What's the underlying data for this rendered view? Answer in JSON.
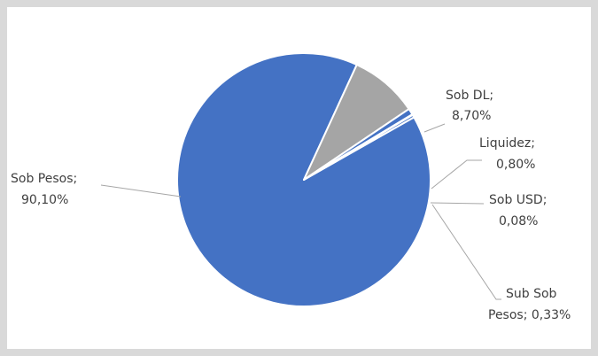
{
  "chart_data": {
    "type": "pie",
    "title": "",
    "slices": [
      {
        "label": "Sob Pesos",
        "value": 90.1,
        "display": "90,10%",
        "color": "#4472c4"
      },
      {
        "label": "Sob DL",
        "value": 8.7,
        "display": "8,70%",
        "color": "#a5a5a5"
      },
      {
        "label": "Liquidez",
        "value": 0.8,
        "display": "0,80%",
        "color": "#4472c4"
      },
      {
        "label": "Sob USD",
        "value": 0.08,
        "display": "0,08%",
        "color": "#4472c4"
      },
      {
        "label": "Sub Sob Pesos",
        "value": 0.33,
        "display": "0,33%",
        "color": "#4472c4"
      }
    ],
    "data_labels": {
      "sob_pesos": [
        "Sob Pesos;",
        "90,10%"
      ],
      "sob_dl": [
        "Sob DL;",
        "8,70%"
      ],
      "liquidez": [
        "Liquidez;",
        "0,80%"
      ],
      "sob_usd": [
        "Sob USD;",
        "0,08%"
      ],
      "sub_sob_pesos": [
        "Sub Sob",
        "Pesos; 0,33%"
      ]
    },
    "separator_color": "#ffffff",
    "leader_line_color": "#a6a6a6",
    "label_color": "#404040",
    "background_color": "#ffffff",
    "border_color": "#d9d9d9",
    "legend": "none"
  }
}
